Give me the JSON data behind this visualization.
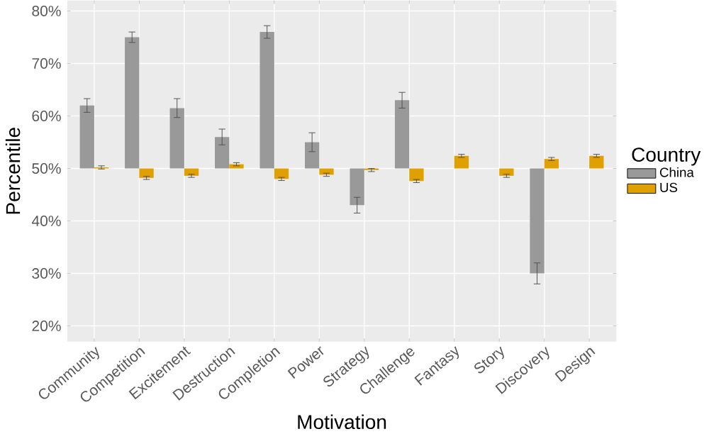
{
  "chart_data": {
    "type": "bar",
    "xlabel": "Motivation",
    "ylabel": "Percentile",
    "legend_title": "Country",
    "categories": [
      "Community",
      "Competition",
      "Excitement",
      "Destruction",
      "Completion",
      "Power",
      "Strategy",
      "Challenge",
      "Fantasy",
      "Story",
      "Discovery",
      "Design"
    ],
    "series": [
      {
        "name": "China",
        "color": "#999999",
        "base": [
          50,
          50,
          50,
          50,
          50,
          50,
          50,
          50,
          null,
          null,
          50,
          null
        ],
        "values": [
          12,
          25,
          11.5,
          6,
          26,
          5,
          -7,
          13,
          null,
          null,
          -20,
          null
        ],
        "errors": [
          1.3,
          1,
          1.8,
          1.5,
          1.2,
          1.8,
          1.5,
          1.5,
          null,
          null,
          2,
          null
        ]
      },
      {
        "name": "US",
        "color": "#e0a000",
        "base": [
          50,
          50,
          50,
          50,
          50,
          50,
          50,
          50,
          50,
          50,
          50,
          50
        ],
        "values": [
          0.2,
          -1.8,
          -1.4,
          0.8,
          -2,
          -1.2,
          -0.3,
          -2.4,
          2.4,
          -1.4,
          1.8,
          2.4
        ],
        "errors": [
          0.3,
          0.3,
          0.3,
          0.3,
          0.3,
          0.3,
          0.3,
          0.3,
          0.3,
          0.3,
          0.3,
          0.3
        ]
      }
    ],
    "ylim": [
      17,
      82
    ],
    "yticks": [
      {
        "value": 20,
        "label": "20%"
      },
      {
        "value": 30,
        "label": "30%"
      },
      {
        "value": 40,
        "label": "40%"
      },
      {
        "value": 50,
        "label": "50%"
      },
      {
        "value": 60,
        "label": "60%"
      },
      {
        "value": 70,
        "label": "70%"
      },
      {
        "value": 80,
        "label": "80%"
      }
    ],
    "grid": true,
    "legend": "right"
  }
}
